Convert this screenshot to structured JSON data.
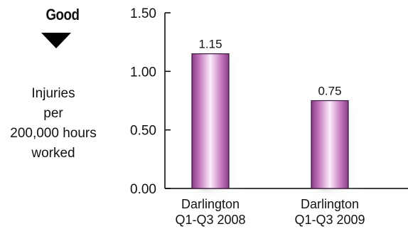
{
  "indicator": {
    "label": "Good",
    "arrow_icon": "down-triangle-icon"
  },
  "chart_data": {
    "type": "bar",
    "categories": [
      [
        "Darlington",
        "Q1-Q3 2008"
      ],
      [
        "Darlington",
        "Q1-Q3 2009"
      ]
    ],
    "values": [
      1.15,
      0.75
    ],
    "data_labels": [
      "1.15",
      "0.75"
    ],
    "ylabel": [
      "Injuries",
      "per",
      "200,000 hours",
      "worked"
    ],
    "ylim": [
      0,
      1.5
    ],
    "yticks": [
      0,
      0.5,
      1.0,
      1.5
    ],
    "ytick_labels": [
      "0.00",
      "0.50",
      "1.00",
      "1.50"
    ],
    "grid": false,
    "bar_color": "#c68fc4",
    "bar_edge_color": "#3a1a3a"
  }
}
